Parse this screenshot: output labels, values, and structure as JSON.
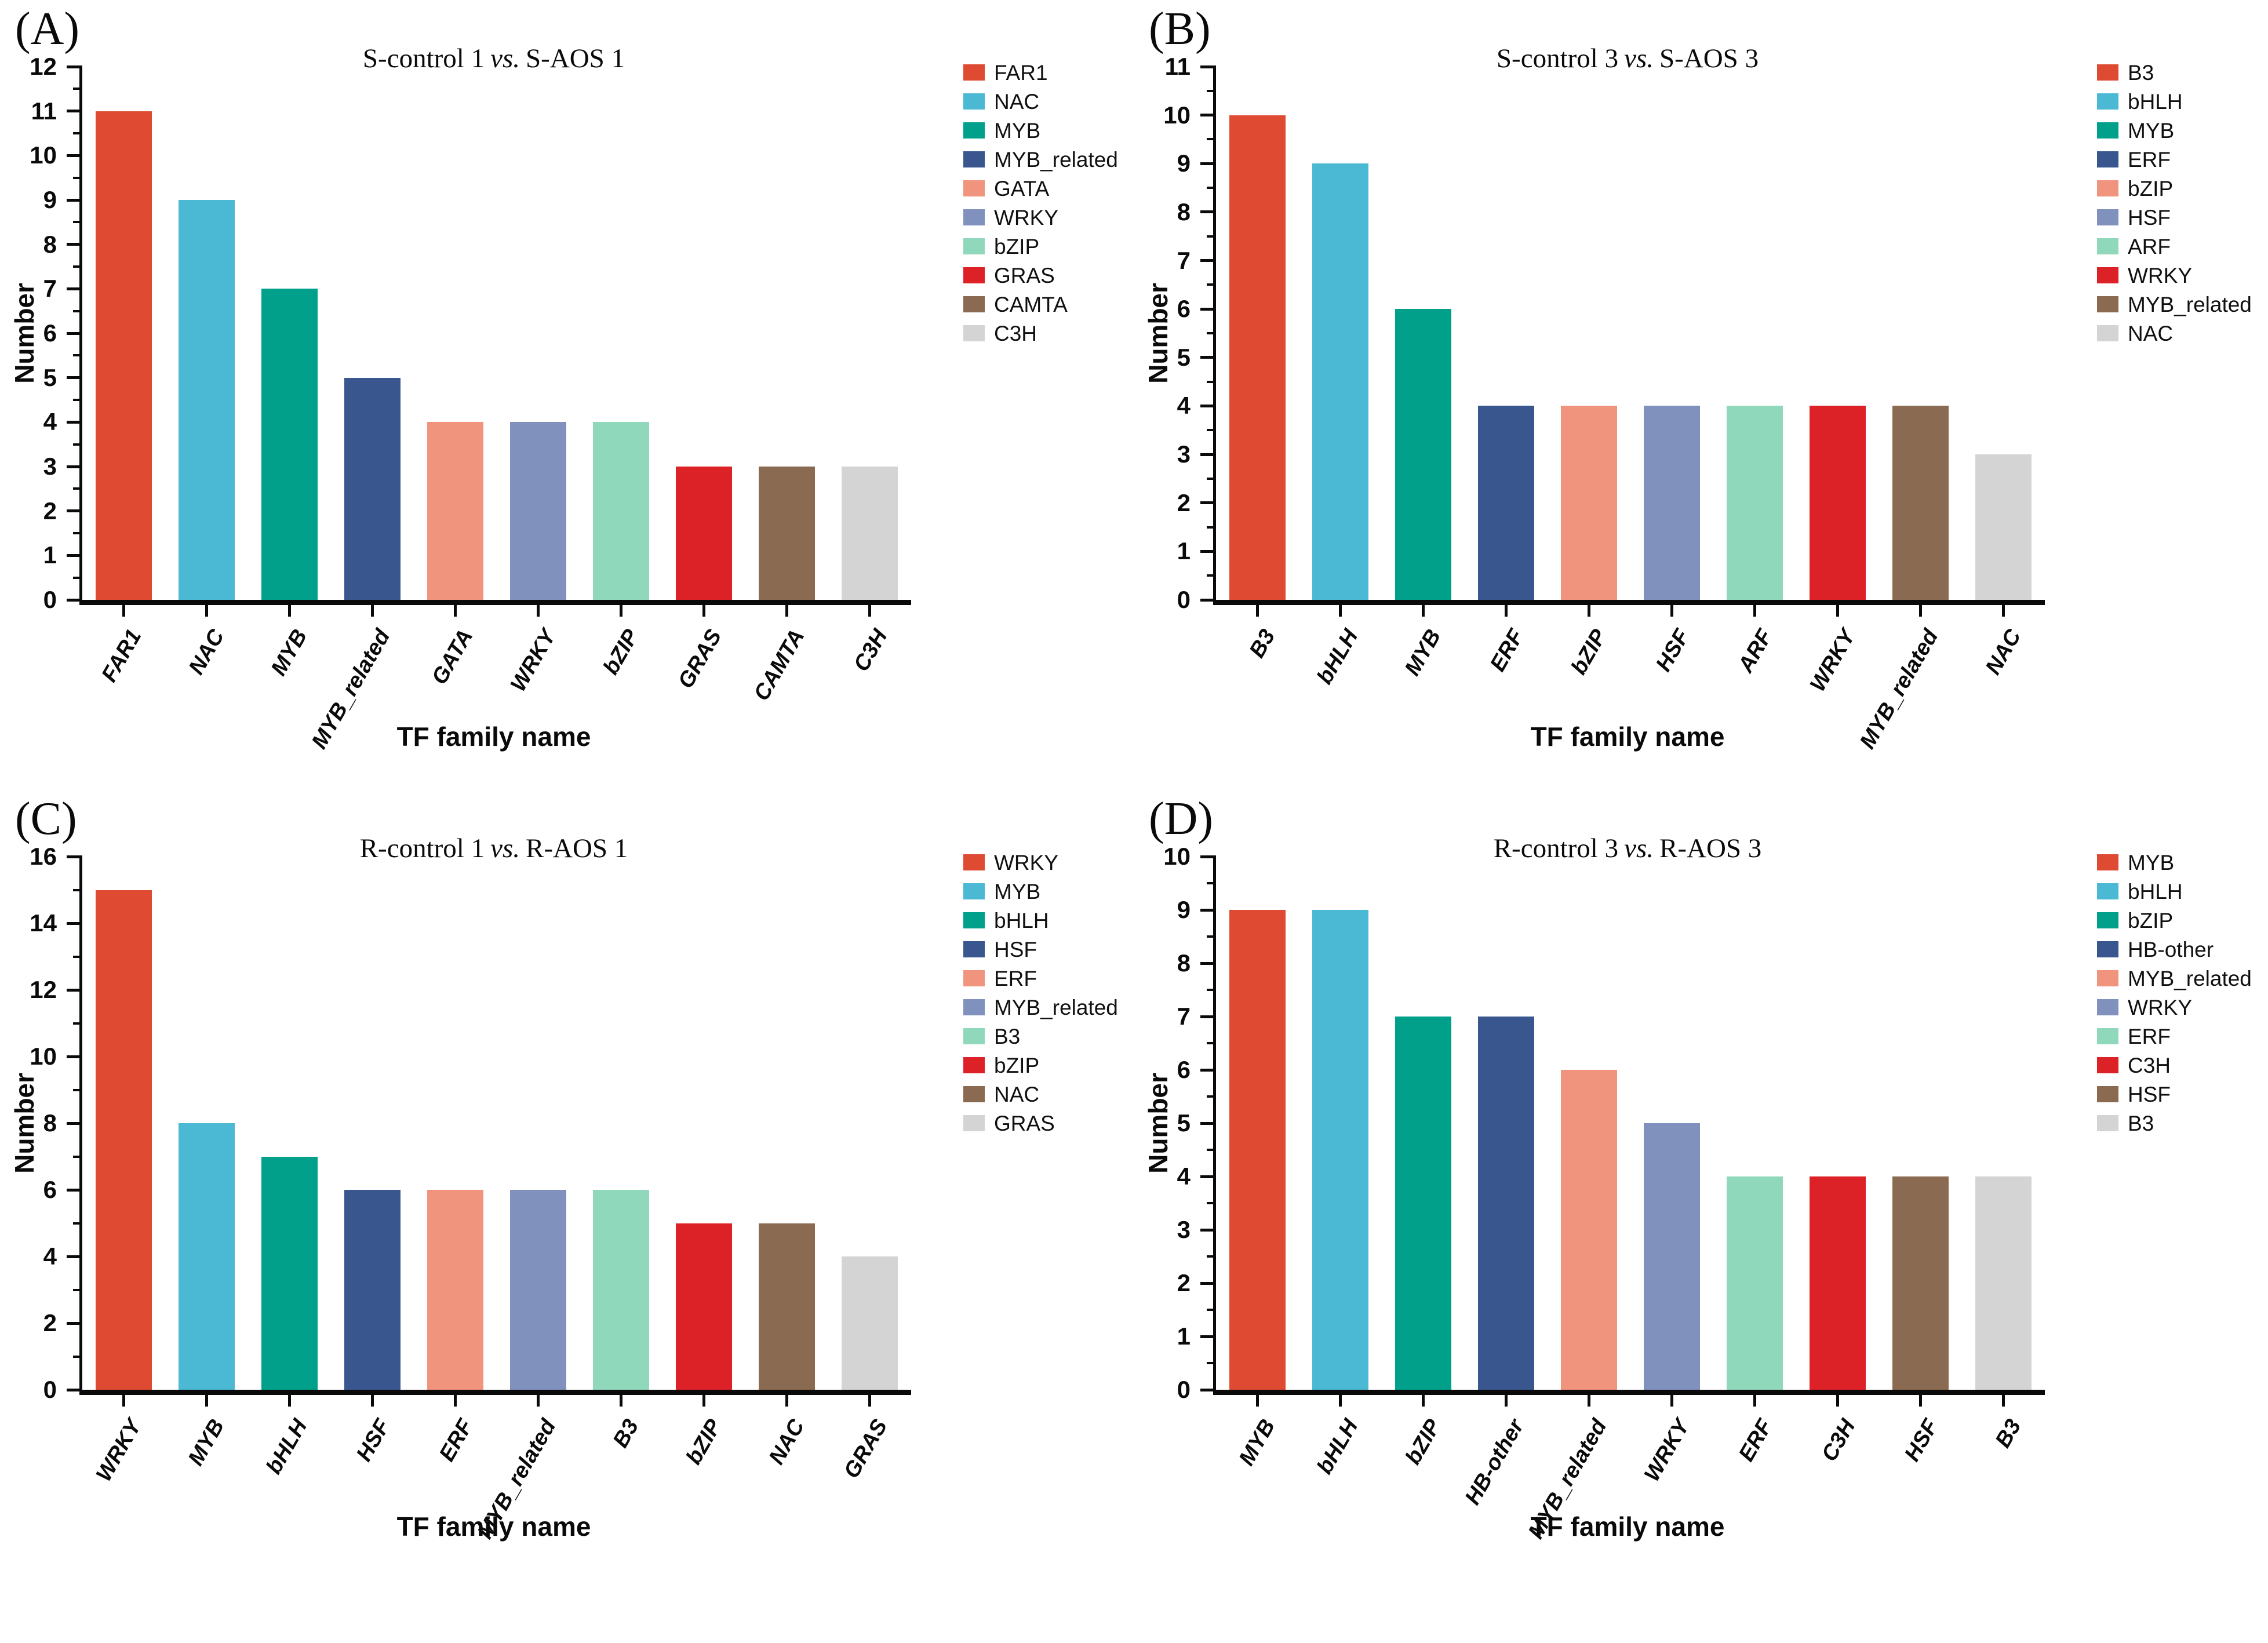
{
  "figure": {
    "y_axis_label": "Number",
    "x_axis_label": "TF family name",
    "palette": [
      "#DF4A32",
      "#4BB8D4",
      "#00A08B",
      "#39568F",
      "#F0947E",
      "#8191BE",
      "#90D8BB",
      "#DC2127",
      "#8A6A50",
      "#D4D4D4"
    ],
    "axis_color": "#0a0a0a"
  },
  "chart_data": [
    {
      "type": "bar",
      "panel_label": "(A)",
      "title": "S-control 1 vs. S-AOS 1",
      "title_parts": [
        "S-control 1",
        "vs.",
        "S-AOS 1"
      ],
      "categories": [
        "FAR1",
        "NAC",
        "MYB",
        "MYB_related",
        "GATA",
        "WRKY",
        "bZIP",
        "GRAS",
        "CAMTA",
        "C3H"
      ],
      "values": [
        11,
        9,
        7,
        5,
        4,
        4,
        4,
        3,
        3,
        3
      ],
      "xlabel": "TF family name",
      "ylabel": "Number",
      "ylim": [
        0,
        12
      ],
      "y_major_step": 1,
      "y_minor_step": 0.5,
      "grid": false,
      "legend_position": "right",
      "legend": [
        "FAR1",
        "NAC",
        "MYB",
        "MYB_related",
        "GATA",
        "WRKY",
        "bZIP",
        "GRAS",
        "CAMTA",
        "C3H"
      ]
    },
    {
      "type": "bar",
      "panel_label": "(B)",
      "title": "S-control 3 vs. S-AOS 3",
      "title_parts": [
        "S-control 3",
        "vs.",
        "S-AOS 3"
      ],
      "categories": [
        "B3",
        "bHLH",
        "MYB",
        "ERF",
        "bZIP",
        "HSF",
        "ARF",
        "WRKY",
        "MYB_related",
        "NAC"
      ],
      "values": [
        10,
        9,
        6,
        4,
        4,
        4,
        4,
        4,
        4,
        3
      ],
      "xlabel": "TF family name",
      "ylabel": "Number",
      "ylim": [
        0,
        11
      ],
      "y_major_step": 1,
      "y_minor_step": 0.5,
      "grid": false,
      "legend_position": "right",
      "legend": [
        "B3",
        "bHLH",
        "MYB",
        "ERF",
        "bZIP",
        "HSF",
        "ARF",
        "WRKY",
        "MYB_related",
        "NAC"
      ]
    },
    {
      "type": "bar",
      "panel_label": "(C)",
      "title": "R-control 1 vs. R-AOS 1",
      "title_parts": [
        "R-control 1",
        "vs.",
        "R-AOS 1"
      ],
      "categories": [
        "WRKY",
        "MYB",
        "bHLH",
        "HSF",
        "ERF",
        "MYB_related",
        "B3",
        "bZIP",
        "NAC",
        "GRAS"
      ],
      "values": [
        15,
        8,
        7,
        6,
        6,
        6,
        6,
        5,
        5,
        4
      ],
      "xlabel": "TF family name",
      "ylabel": "Number",
      "ylim": [
        0,
        16
      ],
      "y_major_step": 2,
      "y_minor_step": 1,
      "grid": false,
      "legend_position": "right",
      "legend": [
        "WRKY",
        "MYB",
        "bHLH",
        "HSF",
        "ERF",
        "MYB_related",
        "B3",
        "bZIP",
        "NAC",
        "GRAS"
      ]
    },
    {
      "type": "bar",
      "panel_label": "(D)",
      "title": "R-control 3 vs. R-AOS 3",
      "title_parts": [
        "R-control 3",
        "vs.",
        "R-AOS 3"
      ],
      "categories": [
        "MYB",
        "bHLH",
        "bZIP",
        "HB-other",
        "MYB_related",
        "WRKY",
        "ERF",
        "C3H",
        "HSF",
        "B3"
      ],
      "values": [
        9,
        9,
        7,
        7,
        6,
        5,
        4,
        4,
        4,
        4
      ],
      "xlabel": "TF family name",
      "ylabel": "Number",
      "ylim": [
        0,
        10
      ],
      "y_major_step": 1,
      "y_minor_step": 0.5,
      "grid": false,
      "legend_position": "right",
      "legend": [
        "MYB",
        "bHLH",
        "bZIP",
        "HB-other",
        "MYB_related",
        "WRKY",
        "ERF",
        "C3H",
        "HSF",
        "B3"
      ]
    }
  ]
}
